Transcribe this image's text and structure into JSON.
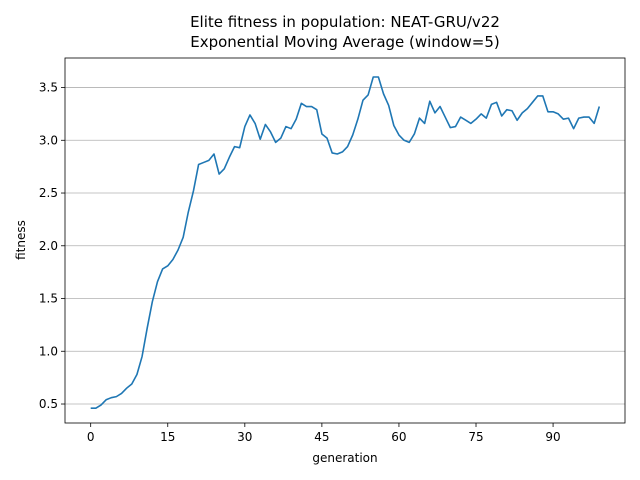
{
  "chart_data": {
    "type": "line",
    "title": "Elite fitness in population: NEAT-GRU/v22",
    "subtitle": "Exponential Moving Average (window=5)",
    "xlabel": "generation",
    "ylabel": "fitness",
    "xlim": [
      -5,
      104
    ],
    "ylim": [
      0.32,
      3.78
    ],
    "xticks": [
      0,
      15,
      30,
      45,
      60,
      75,
      90
    ],
    "yticks": [
      0.5,
      1.0,
      1.5,
      2.0,
      2.5,
      3.0,
      3.5
    ],
    "grid": "horizontal",
    "series": [
      {
        "color": "#1f77b4",
        "x": [
          0,
          1,
          2,
          3,
          4,
          5,
          6,
          7,
          8,
          9,
          10,
          11,
          12,
          13,
          14,
          15,
          16,
          17,
          18,
          19,
          20,
          21,
          22,
          23,
          24,
          25,
          26,
          27,
          28,
          29,
          30,
          31,
          32,
          33,
          34,
          35,
          36,
          37,
          38,
          39,
          40,
          41,
          42,
          43,
          44,
          45,
          46,
          47,
          48,
          49,
          50,
          51,
          52,
          53,
          54,
          55,
          56,
          57,
          58,
          59,
          60,
          61,
          62,
          63,
          64,
          65,
          66,
          67,
          68,
          69,
          70,
          71,
          72,
          73,
          74,
          75,
          76,
          77,
          78,
          79,
          80,
          81,
          82,
          83,
          84,
          85,
          86,
          87,
          88,
          89,
          90,
          91,
          92,
          93,
          94,
          95,
          96,
          97,
          98,
          99
        ],
        "y": [
          0.46,
          0.46,
          0.49,
          0.54,
          0.56,
          0.57,
          0.6,
          0.65,
          0.69,
          0.78,
          0.95,
          1.22,
          1.47,
          1.66,
          1.78,
          1.81,
          1.87,
          1.96,
          2.08,
          2.32,
          2.52,
          2.77,
          2.79,
          2.81,
          2.87,
          2.68,
          2.73,
          2.84,
          2.94,
          2.93,
          3.13,
          3.24,
          3.16,
          3.01,
          3.15,
          3.08,
          2.98,
          3.02,
          3.13,
          3.11,
          3.2,
          3.35,
          3.32,
          3.32,
          3.29,
          3.06,
          3.02,
          2.88,
          2.87,
          2.89,
          2.94,
          3.05,
          3.2,
          3.38,
          3.43,
          3.6,
          3.6,
          3.44,
          3.33,
          3.14,
          3.05,
          3.0,
          2.98,
          3.06,
          3.21,
          3.16,
          3.37,
          3.26,
          3.32,
          3.22,
          3.12,
          3.13,
          3.22,
          3.19,
          3.16,
          3.2,
          3.25,
          3.21,
          3.34,
          3.36,
          3.23,
          3.29,
          3.28,
          3.19,
          3.26,
          3.3,
          3.36,
          3.42,
          3.42,
          3.27,
          3.27,
          3.25,
          3.2,
          3.21,
          3.11,
          3.21,
          3.22,
          3.22,
          3.16,
          3.32
        ]
      }
    ]
  }
}
